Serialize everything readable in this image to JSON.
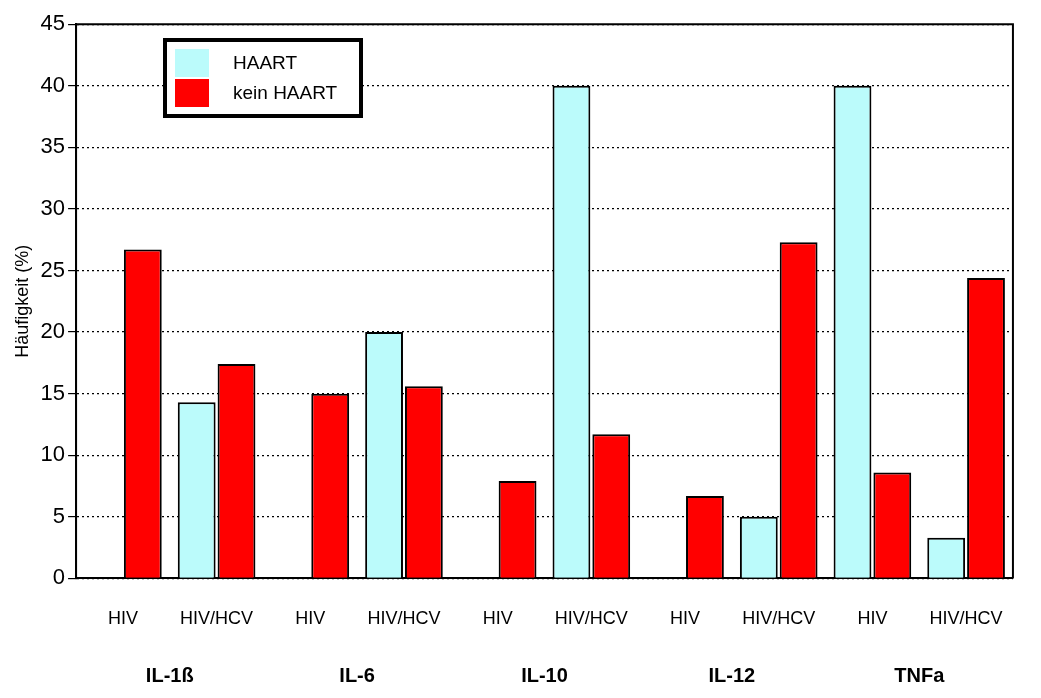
{
  "chart_data": {
    "type": "bar",
    "ylabel": "Häufigkeit (%)",
    "categories": [
      "HIV",
      "HIV/HCV",
      "HIV",
      "HIV/HCV",
      "HIV",
      "HIV/HCV",
      "HIV",
      "HIV/HCV",
      "HIV",
      "HIV/HCV"
    ],
    "series": [
      {
        "name": "HAART",
        "color": "#bbfbfb",
        "values": [
          0,
          14.3,
          0,
          20,
          0,
          40,
          0,
          5,
          40,
          3.3
        ]
      },
      {
        "name": "kein HAART",
        "color": "#ff0000",
        "values": [
          26.7,
          17.4,
          15,
          15.6,
          7.9,
          11.7,
          6.7,
          27.3,
          8.6,
          24.4
        ]
      }
    ],
    "annotations": [
      "IL-1ß",
      "IL-6",
      "IL-10",
      "IL-12",
      "TNFa"
    ],
    "ylim": [
      0,
      45
    ],
    "yticks": [
      0,
      5,
      10,
      15,
      20,
      25,
      30,
      35,
      40,
      45
    ],
    "grid": "y",
    "legend": "top left"
  }
}
